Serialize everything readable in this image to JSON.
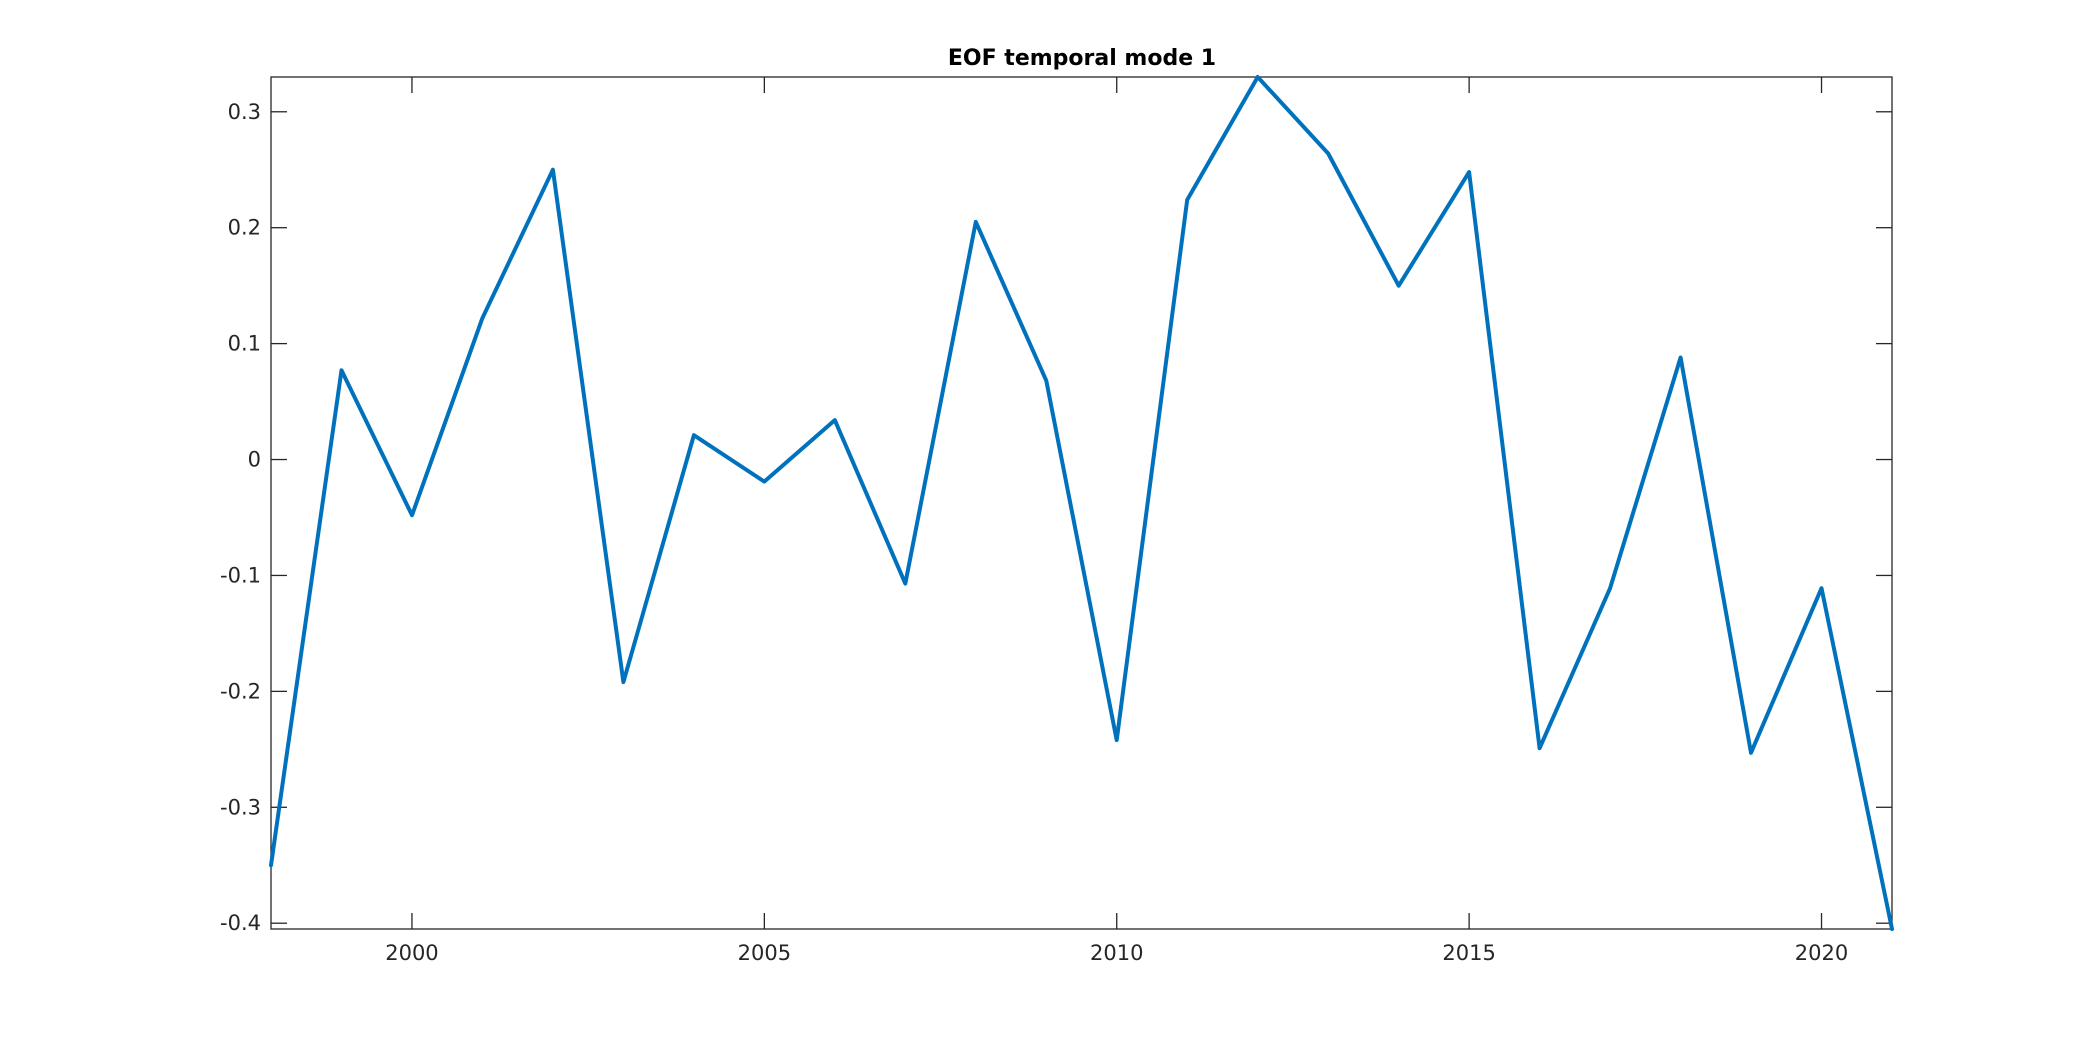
{
  "chart_data": {
    "type": "line",
    "title": "EOF temporal mode 1",
    "xlabel": "",
    "ylabel": "",
    "xlim": [
      1998,
      2021
    ],
    "ylim": [
      -0.405,
      0.33
    ],
    "xticks": [
      2000,
      2005,
      2010,
      2015,
      2020
    ],
    "xtick_labels": [
      "2000",
      "2005",
      "2010",
      "2015",
      "2020"
    ],
    "yticks": [
      0.3,
      0.2,
      0.1,
      0,
      -0.1,
      -0.2,
      -0.3,
      -0.4
    ],
    "ytick_labels": [
      "0.3",
      "0.2",
      "0.1",
      "0",
      "-0.1",
      "-0.2",
      "-0.3",
      "-0.4"
    ],
    "grid": false,
    "legend": "none",
    "series": [
      {
        "color": "#0072BD",
        "x": [
          1998,
          1999,
          2000,
          2001,
          2002,
          2003,
          2004,
          2005,
          2006,
          2007,
          2008,
          2009,
          2010,
          2011,
          2012,
          2013,
          2014,
          2015,
          2016,
          2017,
          2018,
          2019,
          2020,
          2021
        ],
        "y": [
          -0.35,
          0.077,
          -0.048,
          0.122,
          0.25,
          -0.192,
          0.021,
          -0.019,
          0.034,
          -0.107,
          0.205,
          0.068,
          -0.242,
          0.224,
          0.33,
          0.264,
          0.15,
          0.248,
          -0.249,
          -0.111,
          0.088,
          -0.253,
          -0.111,
          -0.405
        ]
      }
    ]
  }
}
